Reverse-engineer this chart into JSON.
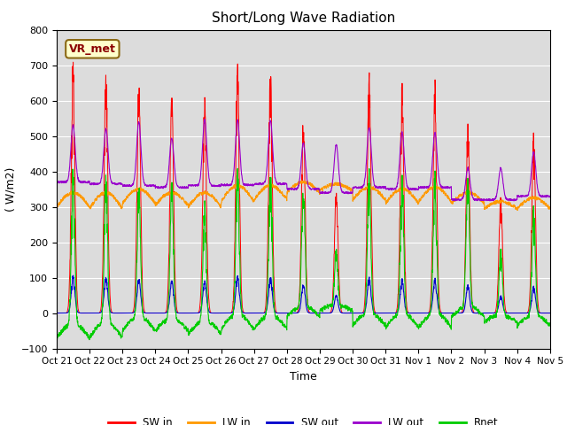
{
  "title": "Short/Long Wave Radiation",
  "ylabel": "( W/m2)",
  "xlabel": "Time",
  "ylim": [
    -100,
    800
  ],
  "yticks": [
    -100,
    0,
    100,
    200,
    300,
    400,
    500,
    600,
    700,
    800
  ],
  "annotation_text": "VR_met",
  "legend_labels": [
    "SW in",
    "LW in",
    "SW out",
    "LW out",
    "Rnet"
  ],
  "legend_colors": [
    "#ff0000",
    "#ff9900",
    "#0000cc",
    "#9900cc",
    "#00cc00"
  ],
  "bg_color": "#dcdcdc",
  "fig_color": "#ffffff",
  "tick_labels": [
    "Oct 21",
    "Oct 22",
    "Oct 23",
    "Oct 24",
    "Oct 25",
    "Oct 26",
    "Oct 27",
    "Oct 28",
    "Oct 29",
    "Oct 30",
    "Oct 31",
    "Nov 1",
    "Nov 2",
    "Nov 3",
    "Nov 4",
    "Nov 5"
  ],
  "n_days": 15,
  "pts_per_day": 144
}
